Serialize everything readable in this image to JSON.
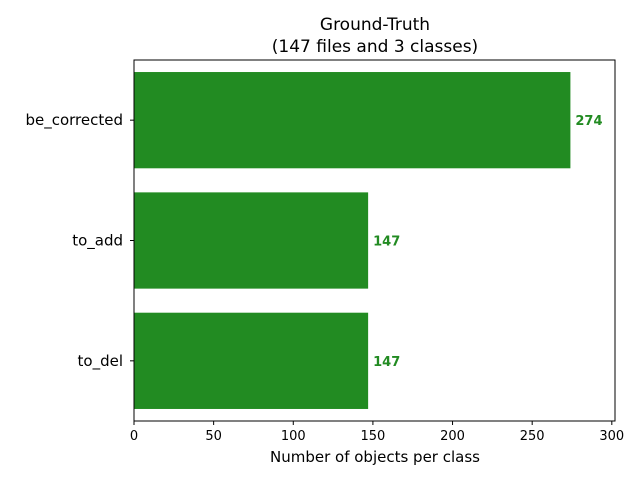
{
  "chart_data": {
    "type": "bar",
    "orientation": "horizontal",
    "title_lines": [
      "Ground-Truth",
      "(147 files and 3 classes)"
    ],
    "xlabel": "Number of objects per class",
    "ylabel": "",
    "categories": [
      "be_corrected",
      "to_add",
      "to_del"
    ],
    "values": [
      274,
      147,
      147
    ],
    "data_labels": [
      "274",
      "147",
      "147"
    ],
    "xlim": [
      0,
      302
    ],
    "xticks": [
      0,
      50,
      100,
      150,
      200,
      250,
      300
    ],
    "bar_color": "#228b22",
    "label_color": "#228b22",
    "grid": false,
    "legend": "none"
  }
}
